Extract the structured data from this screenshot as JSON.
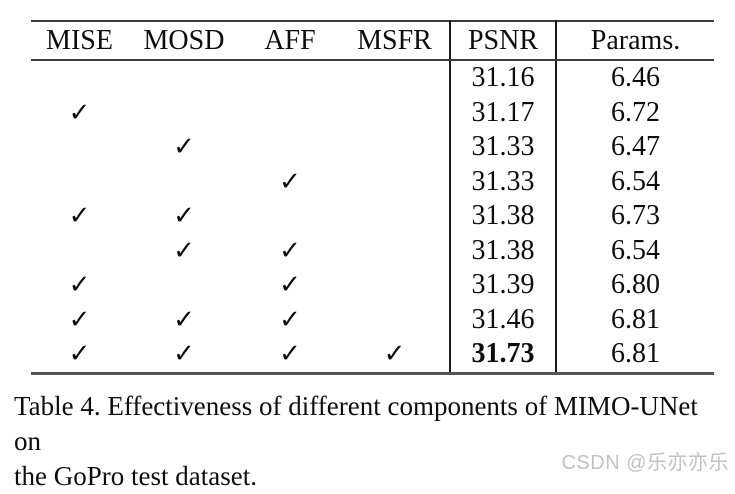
{
  "table": {
    "headers": [
      "MISE",
      "MOSD",
      "AFF",
      "MSFR",
      "PSNR",
      "Params."
    ],
    "check_glyph": "✓",
    "rows": [
      {
        "mise": "",
        "mosd": "",
        "aff": "",
        "msfr": "",
        "psnr": "31.16",
        "params": "6.46"
      },
      {
        "mise": "✓",
        "mosd": "",
        "aff": "",
        "msfr": "",
        "psnr": "31.17",
        "params": "6.72"
      },
      {
        "mise": "",
        "mosd": "✓",
        "aff": "",
        "msfr": "",
        "psnr": "31.33",
        "params": "6.47"
      },
      {
        "mise": "",
        "mosd": "",
        "aff": "✓",
        "msfr": "",
        "psnr": "31.33",
        "params": "6.54"
      },
      {
        "mise": "✓",
        "mosd": "✓",
        "aff": "",
        "msfr": "",
        "psnr": "31.38",
        "params": "6.73"
      },
      {
        "mise": "",
        "mosd": "✓",
        "aff": "✓",
        "msfr": "",
        "psnr": "31.38",
        "params": "6.54"
      },
      {
        "mise": "✓",
        "mosd": "",
        "aff": "✓",
        "msfr": "",
        "psnr": "31.39",
        "params": "6.80"
      },
      {
        "mise": "✓",
        "mosd": "✓",
        "aff": "✓",
        "msfr": "",
        "psnr": "31.46",
        "params": "6.81"
      },
      {
        "mise": "✓",
        "mosd": "✓",
        "aff": "✓",
        "msfr": "✓",
        "psnr": "31.73",
        "params": "6.81"
      }
    ],
    "best_psnr": "31.73"
  },
  "caption": {
    "line1": "Table 4. Effectiveness of different components of MIMO-UNet on",
    "line2": "the GoPro test dataset."
  },
  "watermark": "CSDN @乐亦亦乐",
  "colors": {
    "background": "#ffffff",
    "text": "#0d0d0d",
    "rule": "#3c3c3c",
    "vline": "#1a1a1a",
    "watermark": "#c2c2c2"
  }
}
